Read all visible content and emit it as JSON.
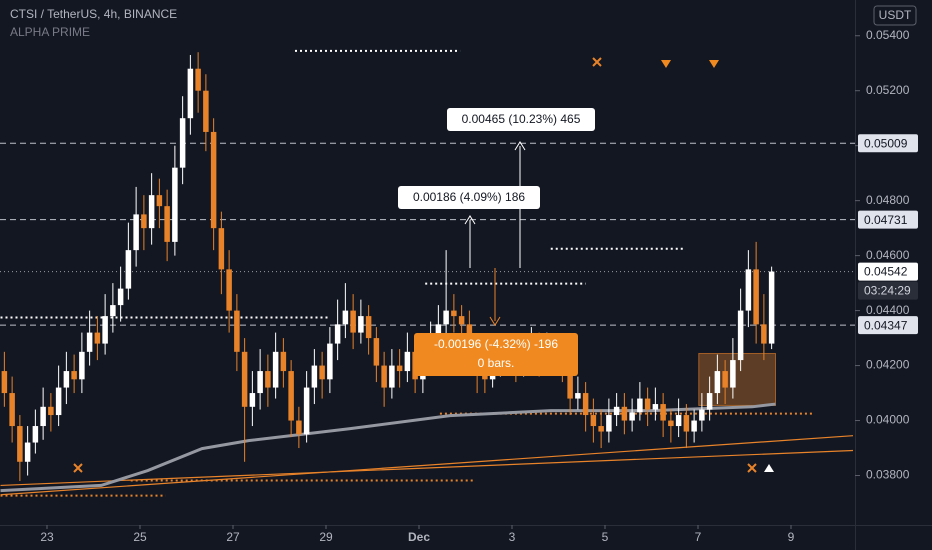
{
  "chart_data": {
    "type": "candlestick",
    "title": "CTSI / TetherUS, 4h, BINANCE",
    "subtitle": "ALPHA PRIME",
    "currency": "USDT",
    "countdown": "03:24:29",
    "up_color": "#ffffff",
    "down_color": "#e8832a",
    "xlim": [
      0,
      110
    ],
    "xticks": [
      {
        "value": 6,
        "label": "23"
      },
      {
        "value": 18,
        "label": "25"
      },
      {
        "value": 30,
        "label": "27"
      },
      {
        "value": 42,
        "label": "29"
      },
      {
        "value": 54,
        "label": "Dec"
      },
      {
        "value": 66,
        "label": "3"
      },
      {
        "value": 78,
        "label": "5"
      },
      {
        "value": 90,
        "label": "7"
      },
      {
        "value": 102,
        "label": "9"
      }
    ],
    "ylim": [
      0.0362,
      0.0553
    ],
    "yticks": [
      {
        "value": 0.038,
        "label": "0.03800"
      },
      {
        "value": 0.04,
        "label": "0.04000"
      },
      {
        "value": 0.042,
        "label": "0.04200"
      },
      {
        "value": 0.044,
        "label": "0.04400"
      },
      {
        "value": 0.046,
        "label": "0.04600"
      },
      {
        "value": 0.048,
        "label": "0.04800"
      },
      {
        "value": 0.05,
        "label": "0.05000"
      },
      {
        "value": 0.052,
        "label": "0.05200"
      },
      {
        "value": 0.054,
        "label": "0.05400"
      }
    ],
    "price_labels": [
      0.05009,
      0.04731,
      0.04542,
      0.04347
    ],
    "candles": [
      [
        0.0418,
        0.0425,
        0.0405,
        0.041
      ],
      [
        0.041,
        0.0416,
        0.0392,
        0.0398
      ],
      [
        0.0398,
        0.0402,
        0.0378,
        0.0385
      ],
      [
        0.0385,
        0.0398,
        0.038,
        0.0392
      ],
      [
        0.0392,
        0.0404,
        0.0388,
        0.0398
      ],
      [
        0.0398,
        0.0412,
        0.0393,
        0.0405
      ],
      [
        0.0405,
        0.041,
        0.0396,
        0.0402
      ],
      [
        0.0402,
        0.042,
        0.0398,
        0.0412
      ],
      [
        0.0412,
        0.0425,
        0.0406,
        0.0418
      ],
      [
        0.0418,
        0.0424,
        0.041,
        0.0415
      ],
      [
        0.0415,
        0.0432,
        0.041,
        0.0425
      ],
      [
        0.0425,
        0.044,
        0.042,
        0.0432
      ],
      [
        0.0432,
        0.0438,
        0.0422,
        0.0428
      ],
      [
        0.0428,
        0.0446,
        0.0424,
        0.0438
      ],
      [
        0.0438,
        0.045,
        0.0432,
        0.0442
      ],
      [
        0.0442,
        0.0456,
        0.0436,
        0.0448
      ],
      [
        0.0448,
        0.0472,
        0.0444,
        0.0462
      ],
      [
        0.0462,
        0.0485,
        0.0456,
        0.0475
      ],
      [
        0.0475,
        0.0482,
        0.0462,
        0.047
      ],
      [
        0.047,
        0.049,
        0.0464,
        0.0482
      ],
      [
        0.0482,
        0.0488,
        0.047,
        0.0478
      ],
      [
        0.0478,
        0.0484,
        0.0458,
        0.0465
      ],
      [
        0.0465,
        0.05,
        0.046,
        0.0492
      ],
      [
        0.0492,
        0.0518,
        0.0486,
        0.051
      ],
      [
        0.051,
        0.0533,
        0.0504,
        0.0528
      ],
      [
        0.0528,
        0.0534,
        0.0512,
        0.052
      ],
      [
        0.052,
        0.0526,
        0.0498,
        0.0505
      ],
      [
        0.0505,
        0.051,
        0.0462,
        0.047
      ],
      [
        0.047,
        0.0476,
        0.0446,
        0.0455
      ],
      [
        0.0455,
        0.0462,
        0.0432,
        0.044
      ],
      [
        0.044,
        0.0446,
        0.0418,
        0.0425
      ],
      [
        0.0425,
        0.043,
        0.0385,
        0.0405
      ],
      [
        0.0405,
        0.0418,
        0.0398,
        0.041
      ],
      [
        0.041,
        0.0426,
        0.0404,
        0.0418
      ],
      [
        0.0418,
        0.0424,
        0.0405,
        0.0412
      ],
      [
        0.0412,
        0.0432,
        0.0408,
        0.0425
      ],
      [
        0.0425,
        0.043,
        0.0412,
        0.0418
      ],
      [
        0.0418,
        0.0422,
        0.0394,
        0.04
      ],
      [
        0.04,
        0.0405,
        0.039,
        0.0395
      ],
      [
        0.0395,
        0.0418,
        0.0392,
        0.0412
      ],
      [
        0.0412,
        0.0426,
        0.0406,
        0.042
      ],
      [
        0.042,
        0.0425,
        0.0408,
        0.0415
      ],
      [
        0.0415,
        0.0434,
        0.041,
        0.0428
      ],
      [
        0.0428,
        0.0444,
        0.0422,
        0.0435
      ],
      [
        0.0435,
        0.045,
        0.043,
        0.044
      ],
      [
        0.044,
        0.0446,
        0.0426,
        0.0432
      ],
      [
        0.0432,
        0.0444,
        0.0428,
        0.0438
      ],
      [
        0.0438,
        0.0442,
        0.0424,
        0.043
      ],
      [
        0.043,
        0.0434,
        0.0414,
        0.042
      ],
      [
        0.042,
        0.0425,
        0.0405,
        0.0412
      ],
      [
        0.0412,
        0.0426,
        0.0408,
        0.042
      ],
      [
        0.042,
        0.0426,
        0.0412,
        0.0418
      ],
      [
        0.0418,
        0.0432,
        0.0414,
        0.0425
      ],
      [
        0.0425,
        0.043,
        0.041,
        0.0415
      ],
      [
        0.0415,
        0.0428,
        0.041,
        0.0422
      ],
      [
        0.0422,
        0.0436,
        0.0418,
        0.043
      ],
      [
        0.043,
        0.0442,
        0.0426,
        0.0435
      ],
      [
        0.0435,
        0.0462,
        0.043,
        0.044
      ],
      [
        0.044,
        0.0446,
        0.0432,
        0.0438
      ],
      [
        0.0438,
        0.0442,
        0.0428,
        0.0435
      ],
      [
        0.0435,
        0.044,
        0.0418,
        0.0425
      ],
      [
        0.0425,
        0.043,
        0.041,
        0.0418
      ],
      [
        0.0418,
        0.0424,
        0.041,
        0.0415
      ],
      [
        0.0415,
        0.0426,
        0.0412,
        0.042
      ],
      [
        0.042,
        0.0428,
        0.0416,
        0.0422
      ],
      [
        0.0422,
        0.043,
        0.0418,
        0.0425
      ],
      [
        0.0425,
        0.043,
        0.0414,
        0.042
      ],
      [
        0.042,
        0.043,
        0.0416,
        0.0424
      ],
      [
        0.0424,
        0.0434,
        0.042,
        0.0428
      ],
      [
        0.0428,
        0.0432,
        0.0416,
        0.0422
      ],
      [
        0.0422,
        0.0432,
        0.0418,
        0.0426
      ],
      [
        0.0426,
        0.043,
        0.0418,
        0.0423
      ],
      [
        0.0423,
        0.0428,
        0.0414,
        0.042
      ],
      [
        0.042,
        0.0424,
        0.0402,
        0.0408
      ],
      [
        0.0408,
        0.0416,
        0.0404,
        0.041
      ],
      [
        0.041,
        0.0414,
        0.0396,
        0.0402
      ],
      [
        0.0402,
        0.0408,
        0.0392,
        0.0398
      ],
      [
        0.0398,
        0.0404,
        0.039,
        0.0396
      ],
      [
        0.0396,
        0.0408,
        0.0392,
        0.0402
      ],
      [
        0.0402,
        0.041,
        0.0398,
        0.0405
      ],
      [
        0.0405,
        0.041,
        0.0395,
        0.04
      ],
      [
        0.04,
        0.0408,
        0.0396,
        0.0403
      ],
      [
        0.0403,
        0.0414,
        0.04,
        0.0408
      ],
      [
        0.0408,
        0.0412,
        0.0398,
        0.0404
      ],
      [
        0.0404,
        0.0412,
        0.04,
        0.0406
      ],
      [
        0.0406,
        0.041,
        0.0394,
        0.04
      ],
      [
        0.04,
        0.0404,
        0.0392,
        0.0398
      ],
      [
        0.0398,
        0.0408,
        0.0394,
        0.0402
      ],
      [
        0.0402,
        0.0406,
        0.039,
        0.0396
      ],
      [
        0.0396,
        0.0404,
        0.0392,
        0.04
      ],
      [
        0.04,
        0.041,
        0.0396,
        0.0404
      ],
      [
        0.0404,
        0.0416,
        0.04,
        0.041
      ],
      [
        0.041,
        0.0424,
        0.0406,
        0.0418
      ],
      [
        0.0418,
        0.0422,
        0.0406,
        0.0412
      ],
      [
        0.0412,
        0.043,
        0.0408,
        0.0422
      ],
      [
        0.0422,
        0.0448,
        0.0418,
        0.044
      ],
      [
        0.044,
        0.0462,
        0.0434,
        0.0455
      ],
      [
        0.0455,
        0.0465,
        0.0428,
        0.0435
      ],
      [
        0.0435,
        0.0446,
        0.0422,
        0.0428
      ],
      [
        0.0428,
        0.0456,
        0.0426,
        0.04542
      ]
    ],
    "ma": {
      "color": "#9598a1",
      "x": [
        0,
        13,
        19,
        26,
        32,
        45,
        58,
        71,
        84,
        97,
        100
      ],
      "values": [
        0.03745,
        0.03764,
        0.03818,
        0.03898,
        0.03927,
        0.0397,
        0.04018,
        0.04036,
        0.04036,
        0.0405,
        0.0406
      ]
    },
    "trend_lines": [
      {
        "color": "#e8832a",
        "x": [
          0,
          110
        ],
        "values": [
          0.0373,
          0.03945
        ]
      },
      {
        "color": "#e8832a",
        "x": [
          0,
          110
        ],
        "values": [
          0.03764,
          0.03891
        ]
      }
    ],
    "levels": [
      {
        "color": "#ffffff",
        "x": [
          38,
          59.3
        ],
        "value": 0.05345
      },
      {
        "color": "#ffffff",
        "x": [
          71,
          88.3
        ],
        "value": 0.04625
      },
      {
        "color": "#ffffff",
        "x": [
          54.8,
          75.5
        ],
        "value": 0.04498
      },
      {
        "color": "#ffffff",
        "x": [
          0,
          42.5
        ],
        "value": 0.04375
      },
      {
        "color": "#e8832a",
        "x": [
          56.7,
          105
        ],
        "value": 0.04025
      },
      {
        "color": "#e8832a",
        "x": [
          16.8,
          61.3
        ],
        "value": 0.03782
      },
      {
        "color": "#e8832a",
        "x": [
          0,
          21.3
        ],
        "value": 0.03727
      }
    ],
    "range_box": {
      "x": [
        90.1,
        100
      ],
      "values": [
        0.04244,
        0.04055
      ]
    },
    "annotations": [
      "0.00465 (10.23%) 465",
      "0.00186 (4.09%) 186",
      "-0.00196 (-4.32%) -196",
      "0 bars."
    ]
  }
}
